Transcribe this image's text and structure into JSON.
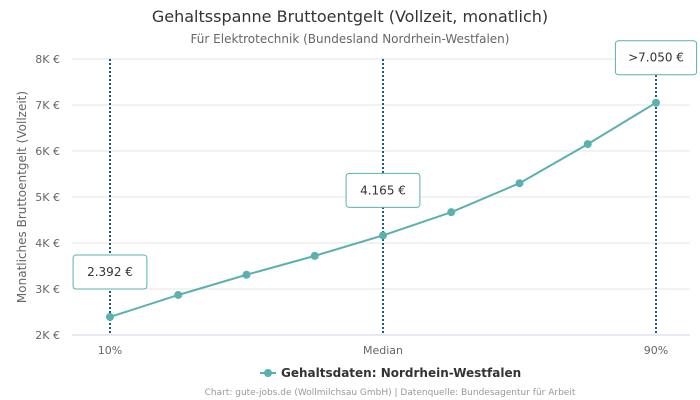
{
  "chart_data": {
    "type": "line",
    "title": "Gehaltsspanne Bruttoentgelt (Vollzeit, monatlich)",
    "subtitle": "Für Elektrotechnik (Bundesland Nordrhein-Westfalen)",
    "ylabel": "Monatliches Bruttoentgelt (Vollzeit)",
    "xlabel": "",
    "ylim": [
      2000,
      8000
    ],
    "yticks": [
      {
        "value": 2000,
        "label": "2K €"
      },
      {
        "value": 3000,
        "label": "3K €"
      },
      {
        "value": 4000,
        "label": "4K €"
      },
      {
        "value": 5000,
        "label": "5K €"
      },
      {
        "value": 6000,
        "label": "6K €"
      },
      {
        "value": 7000,
        "label": "7K €"
      },
      {
        "value": 8000,
        "label": "8K €"
      }
    ],
    "x": [
      10,
      20,
      30,
      40,
      50,
      60,
      70,
      80,
      90
    ],
    "xticks": [
      {
        "value": 10,
        "label": "10%"
      },
      {
        "value": 50,
        "label": "Median"
      },
      {
        "value": 90,
        "label": "90%"
      }
    ],
    "series": [
      {
        "name": "Gehaltsdaten: Nordrhein-Westfalen",
        "values": [
          2392,
          2870,
          3310,
          3720,
          4165,
          4670,
          5300,
          6150,
          7050
        ]
      }
    ],
    "annotations": [
      {
        "x": 10,
        "y": 2392,
        "label": "2.392 €"
      },
      {
        "x": 50,
        "y": 4165,
        "label": "4.165 €"
      },
      {
        "x": 90,
        "y": 7050,
        "label": ">7.050 €"
      }
    ],
    "grid": true,
    "legend_position": "bottom-center",
    "credits": "Chart: gute-jobs.de (Wollmilchsau GmbH) | Datenquelle: Bundesagentur für Arbeit",
    "colors": {
      "series": "#5ab1ad",
      "reference_line": "#1f5a7a",
      "grid": "#e6e6e6",
      "callout_border": "#5ab1ad"
    }
  }
}
